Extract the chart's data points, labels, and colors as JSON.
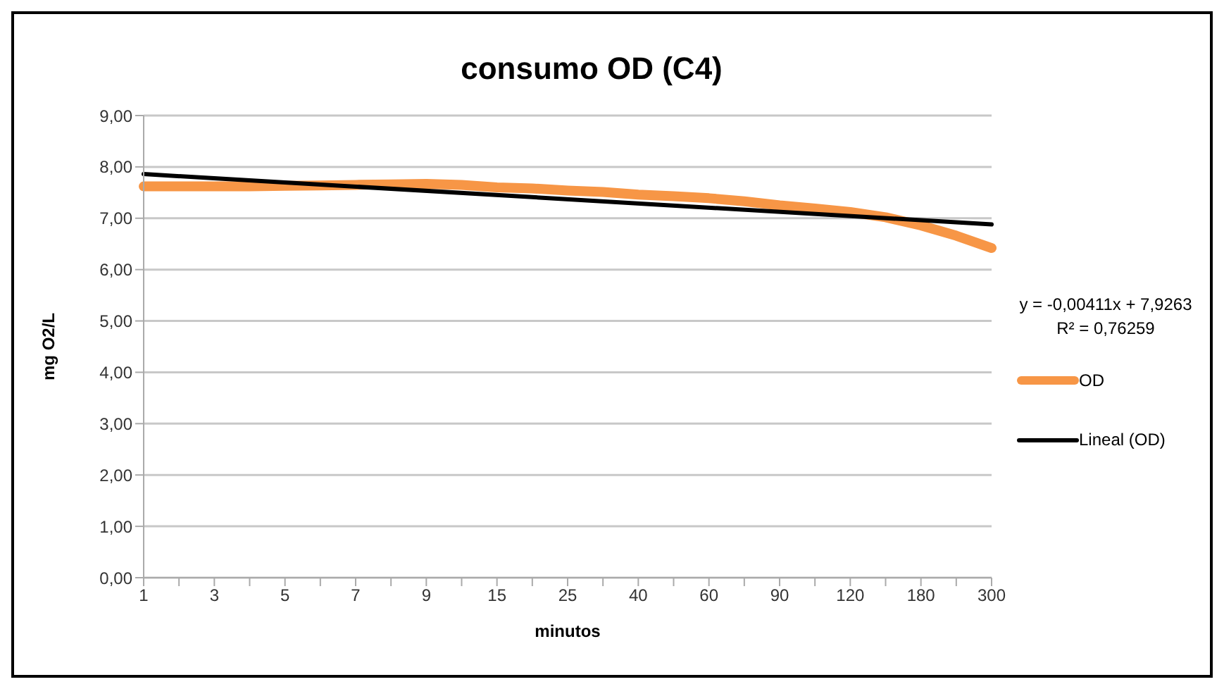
{
  "chart_data": {
    "type": "line",
    "title": "consumo OD (C4)",
    "xlabel": "minutos",
    "ylabel": "mg O2/L",
    "categories": [
      "1",
      null,
      "3",
      null,
      "5",
      null,
      "7",
      null,
      "9",
      null,
      "15",
      null,
      "25",
      null,
      "40",
      null,
      "60",
      null,
      "90",
      null,
      "120",
      null,
      "180",
      null,
      "300"
    ],
    "series": [
      {
        "name": "OD",
        "color": "#f79646",
        "values": [
          7.62,
          7.62,
          7.62,
          7.62,
          7.63,
          7.64,
          7.65,
          7.66,
          7.67,
          7.65,
          7.6,
          7.58,
          7.54,
          7.51,
          7.46,
          7.43,
          7.39,
          7.33,
          7.25,
          7.19,
          7.12,
          7.02,
          6.86,
          6.66,
          6.42
        ]
      },
      {
        "name": "Lineal (OD)",
        "color": "#000000",
        "values": [
          7.86,
          null,
          null,
          null,
          null,
          null,
          null,
          null,
          null,
          null,
          null,
          null,
          null,
          null,
          null,
          null,
          null,
          null,
          null,
          null,
          null,
          null,
          null,
          null,
          6.88
        ]
      }
    ],
    "ylim": [
      0,
      9
    ],
    "yticks": [
      {
        "value": 0,
        "label": "0,00"
      },
      {
        "value": 1,
        "label": "1,00"
      },
      {
        "value": 2,
        "label": "2,00"
      },
      {
        "value": 3,
        "label": "3,00"
      },
      {
        "value": 4,
        "label": "4,00"
      },
      {
        "value": 5,
        "label": "5,00"
      },
      {
        "value": 6,
        "label": "6,00"
      },
      {
        "value": 7,
        "label": "7,00"
      },
      {
        "value": 8,
        "label": "8,00"
      },
      {
        "value": 9,
        "label": "9,00"
      }
    ],
    "grid": "y",
    "legend": "right",
    "marker": "none",
    "annotations": [
      "y = -0,00411x + 7,9263",
      "R² = 0,76259"
    ]
  }
}
